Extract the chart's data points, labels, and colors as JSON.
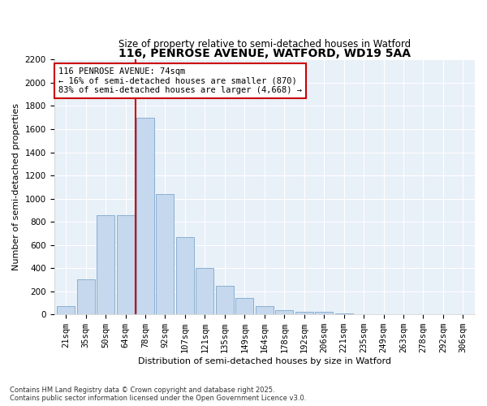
{
  "title": "116, PENROSE AVENUE, WATFORD, WD19 5AA",
  "subtitle": "Size of property relative to semi-detached houses in Watford",
  "xlabel": "Distribution of semi-detached houses by size in Watford",
  "ylabel": "Number of semi-detached properties",
  "bins": [
    "21sqm",
    "35sqm",
    "50sqm",
    "64sqm",
    "78sqm",
    "92sqm",
    "107sqm",
    "121sqm",
    "135sqm",
    "149sqm",
    "164sqm",
    "178sqm",
    "192sqm",
    "206sqm",
    "221sqm",
    "235sqm",
    "249sqm",
    "263sqm",
    "278sqm",
    "292sqm",
    "306sqm"
  ],
  "values": [
    70,
    300,
    860,
    860,
    1700,
    1040,
    670,
    400,
    245,
    140,
    75,
    35,
    25,
    25,
    10,
    5,
    5,
    5,
    5,
    5,
    5
  ],
  "bar_color": "#c5d8ed",
  "bar_edge_color": "#8ab0d0",
  "vline_color": "#cc0000",
  "annotation_text": "116 PENROSE AVENUE: 74sqm\n← 16% of semi-detached houses are smaller (870)\n83% of semi-detached houses are larger (4,668) →",
  "ylim": [
    0,
    2200
  ],
  "yticks": [
    0,
    200,
    400,
    600,
    800,
    1000,
    1200,
    1400,
    1600,
    1800,
    2000,
    2200
  ],
  "footnote1": "Contains HM Land Registry data © Crown copyright and database right 2025.",
  "footnote2": "Contains public sector information licensed under the Open Government Licence v3.0.",
  "title_fontsize": 10,
  "subtitle_fontsize": 8.5,
  "xlabel_fontsize": 8,
  "ylabel_fontsize": 8,
  "tick_fontsize": 7.5,
  "annot_fontsize": 7.5,
  "footnote_fontsize": 6
}
